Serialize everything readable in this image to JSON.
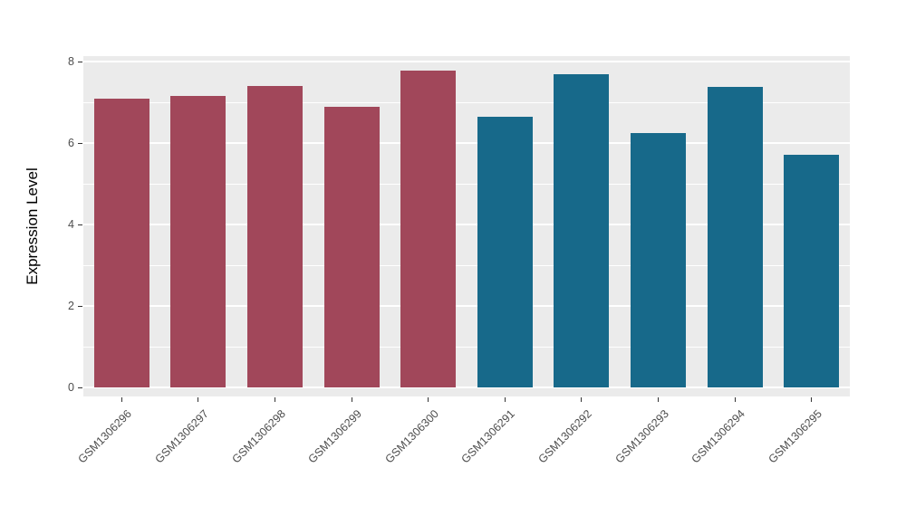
{
  "chart_data": {
    "type": "bar",
    "title": "",
    "xlabel": "",
    "ylabel": "Expression Level",
    "ylim": [
      0,
      8
    ],
    "yticks": [
      0,
      2,
      4,
      6,
      8
    ],
    "yticks_minor": [
      1,
      3,
      5,
      7
    ],
    "grid": "on",
    "legend": "none",
    "panel_bg": "#EBEBEB",
    "grid_color": "#FFFFFF",
    "tick_label_color": "#4D4D4D",
    "categories": [
      "GSM1306296",
      "GSM1306297",
      "GSM1306298",
      "GSM1306299",
      "GSM1306300",
      "GSM1306291",
      "GSM1306292",
      "GSM1306293",
      "GSM1306294",
      "GSM1306295"
    ],
    "bars": [
      {
        "label": "GSM1306296",
        "value": 7.1,
        "group": "groupA"
      },
      {
        "label": "GSM1306297",
        "value": 7.15,
        "group": "groupA"
      },
      {
        "label": "GSM1306298",
        "value": 7.4,
        "group": "groupA"
      },
      {
        "label": "GSM1306299",
        "value": 6.9,
        "group": "groupA"
      },
      {
        "label": "GSM1306300",
        "value": 7.78,
        "group": "groupA"
      },
      {
        "label": "GSM1306291",
        "value": 6.65,
        "group": "groupB"
      },
      {
        "label": "GSM1306292",
        "value": 7.7,
        "group": "groupB"
      },
      {
        "label": "GSM1306293",
        "value": 6.25,
        "group": "groupB"
      },
      {
        "label": "GSM1306294",
        "value": 7.38,
        "group": "groupB"
      },
      {
        "label": "GSM1306295",
        "value": 5.72,
        "group": "groupB"
      }
    ],
    "colors": {
      "groupA": "#A1475A",
      "groupB": "#17698A"
    }
  }
}
